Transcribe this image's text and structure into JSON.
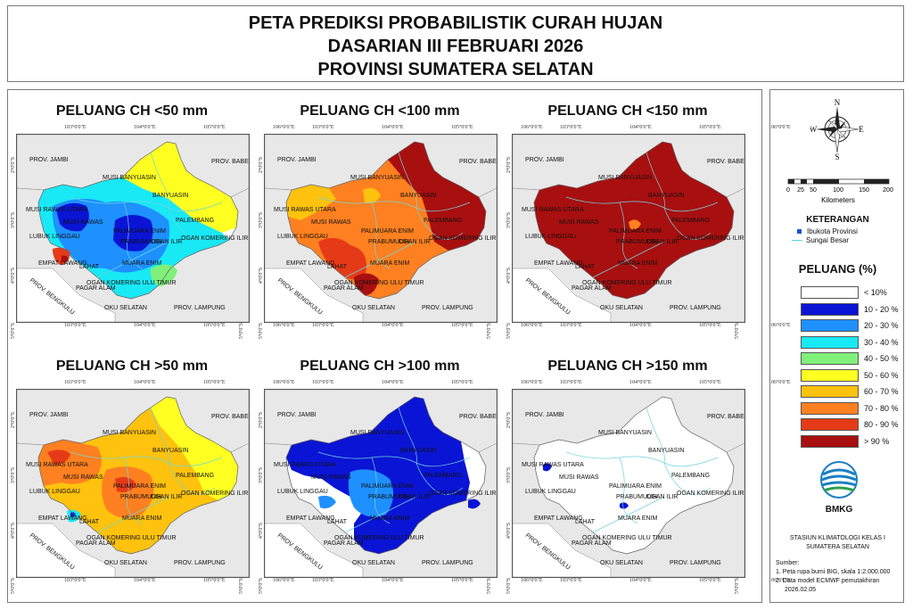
{
  "title": {
    "line1": "PETA PREDIKSI PROBABILISTIK CURAH HUJAN",
    "line2": "DASARIAN III FEBRUARI 2026",
    "line3": "PROVINSI SUMATERA SELATAN"
  },
  "panels": [
    {
      "title": "PELUANG CH <50 mm",
      "scheme": "lt50"
    },
    {
      "title": "PELUANG CH <100 mm",
      "scheme": "lt100"
    },
    {
      "title": "PELUANG CH <150 mm",
      "scheme": "lt150"
    },
    {
      "title": "PELUANG CH >50 mm",
      "scheme": "gt50"
    },
    {
      "title": "PELUANG CH >100 mm",
      "scheme": "gt100"
    },
    {
      "title": "PELUANG CH >150 mm",
      "scheme": "gt150"
    }
  ],
  "ticks": {
    "lon": [
      "103°0'0\"E",
      "104°0'0\"E",
      "105°0'0\"E",
      "106°0'0\"E"
    ],
    "lat": [
      "2°0'0\"S",
      "3°0'0\"S",
      "4°0'0\"S",
      "5°0'0\"S"
    ]
  },
  "place_labels": {
    "prov_jambi": "PROV. JAMBI",
    "prov_babel": "PROV. BABEL",
    "prov_bengkulu": "PROV. BENGKULU",
    "prov_lampung": "PROV. LAMPUNG",
    "musi_banyuasin": "MUSI BANYUASIN",
    "banyuasin": "BANYUASIN",
    "musi_rawas_utara": "MUSI RAWAS UTARA",
    "musi_rawas": "MUSI RAWAS",
    "palembang": "PALEMBANG",
    "lubuk_linggau": "LUBUK LINGGAU",
    "palimuara_enim": "PALIMUARA ENIM",
    "prabumulih": "PRABUMULIH",
    "ogan_ilir": "OGAN ILIR",
    "ogan_komering_ilir": "OGAN KOMERING ILIR",
    "empat_lawang": "EMPAT LAWANG",
    "lahat": "LAHAT",
    "muara_enim": "MUARA ENIM",
    "pagar_alam": "PAGAR ALAM",
    "ogan_komering_ulu_timur": "OGAN KOMERING ULU TIMUR",
    "oku_selatan": "OKU SELATAN"
  },
  "compass": {
    "n": "N",
    "s": "S",
    "e": "E",
    "w": "W"
  },
  "scale": {
    "ticks": [
      "0",
      "25",
      "50",
      "100",
      "150",
      "200"
    ],
    "unit": "Kilometers"
  },
  "legend": {
    "heading": "KETERANGAN",
    "capital": "Ibukota Provinsi",
    "river": "Sungai Besar",
    "prob_heading": "PELUANG (%)",
    "classes": [
      {
        "label": "< 10%",
        "color": "#ffffff"
      },
      {
        "label": "10 - 20 %",
        "color": "#0a14d4"
      },
      {
        "label": "20 - 30 %",
        "color": "#1e90ff"
      },
      {
        "label": "30 - 40 %",
        "color": "#19e8f5"
      },
      {
        "label": "40 - 50 %",
        "color": "#7ff07a"
      },
      {
        "label": "50 - 60 %",
        "color": "#ffff22"
      },
      {
        "label": "60 - 70 %",
        "color": "#ffc20e"
      },
      {
        "label": "70 - 80 %",
        "color": "#ff8020"
      },
      {
        "label": "80 - 90 %",
        "color": "#e53a18"
      },
      {
        "label": "> 90 %",
        "color": "#a80f0f"
      }
    ]
  },
  "logo": {
    "text": "BMKG"
  },
  "station": {
    "line1": "STASIUN KLIMATOLOGI KELAS I",
    "line2": "SUMATERA SELATAN"
  },
  "sources": {
    "heading": "Sumber:",
    "item1": "1. Peta rupa bumi BIG, skala 1:2.000.000",
    "item2": "2. Data model ECMWF pemutakhiran",
    "item2b": "2026.02.05"
  }
}
